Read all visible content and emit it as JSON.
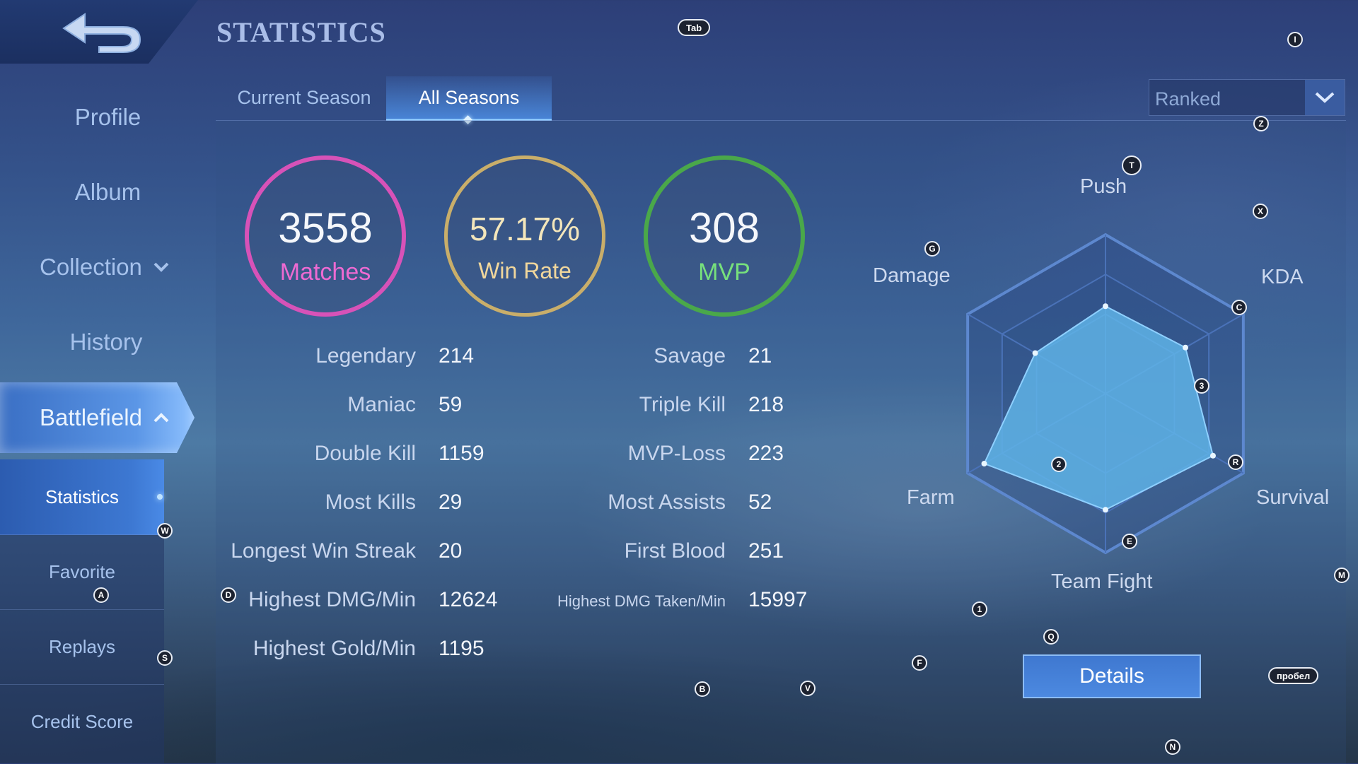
{
  "header": {
    "title": "STATISTICS"
  },
  "sidebar": {
    "items": [
      {
        "label": "Profile"
      },
      {
        "label": "Album"
      },
      {
        "label": "Collection"
      },
      {
        "label": "History"
      },
      {
        "label": "Battlefield"
      }
    ],
    "sub_items": [
      {
        "label": "Statistics"
      },
      {
        "label": "Favorite"
      },
      {
        "label": "Replays"
      },
      {
        "label": "Credit Score"
      }
    ]
  },
  "tabs": [
    {
      "label": "Current Season"
    },
    {
      "label": "All Seasons"
    }
  ],
  "mode_select": {
    "value": "Ranked"
  },
  "summary": {
    "matches": {
      "value": "3558",
      "label": "Matches"
    },
    "win_rate": {
      "value": "57.17%",
      "label": "Win Rate"
    },
    "mvp": {
      "value": "308",
      "label": "MVP"
    }
  },
  "stats_left": [
    {
      "label": "Legendary",
      "value": "214"
    },
    {
      "label": "Maniac",
      "value": "59"
    },
    {
      "label": "Double Kill",
      "value": "1159"
    },
    {
      "label": "Most Kills",
      "value": "29"
    },
    {
      "label": "Longest Win Streak",
      "value": "20"
    },
    {
      "label": "Highest DMG/Min",
      "value": "12624"
    },
    {
      "label": "Highest Gold/Min",
      "value": "1195"
    }
  ],
  "stats_right": [
    {
      "label": "Savage",
      "value": "21"
    },
    {
      "label": "Triple Kill",
      "value": "218"
    },
    {
      "label": "MVP-Loss",
      "value": "223"
    },
    {
      "label": "Most Assists",
      "value": "52"
    },
    {
      "label": "First Blood",
      "value": "251"
    },
    {
      "label": "Highest DMG Taken/Min",
      "value": "15997"
    }
  ],
  "radar": {
    "axes": [
      "Push",
      "KDA",
      "Survival",
      "Team Fight",
      "Farm",
      "Damage"
    ],
    "values": [
      0.55,
      0.58,
      0.78,
      0.73,
      0.88,
      0.51
    ]
  },
  "details_label": "Details",
  "hotkeys": {
    "tab": "Tab",
    "i": "I",
    "z": "Z",
    "t": "T",
    "x": "X",
    "g": "G",
    "c": "C",
    "three": "3",
    "two": "2",
    "r": "R",
    "e": "E",
    "w": "W",
    "a": "A",
    "d": "D",
    "s": "S",
    "m": "M",
    "one": "1",
    "q": "Q",
    "f": "F",
    "b": "B",
    "v": "V",
    "space": "пробел",
    "n": "N"
  },
  "colors": {
    "matches_ring": "#d752b8",
    "winrate_ring": "#c9ae6a",
    "mvp_ring": "#4aa84a",
    "radar_fill": "#5fb3e6",
    "accent": "#4c89e0"
  }
}
